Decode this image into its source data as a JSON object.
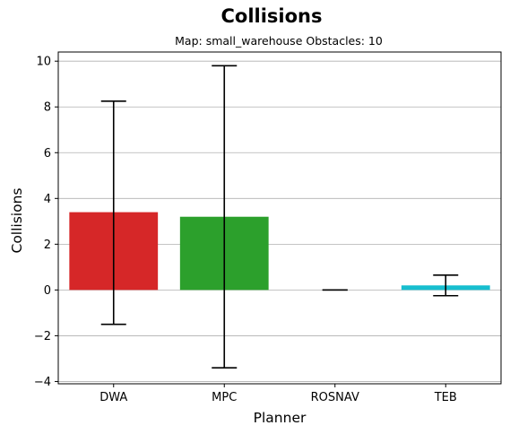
{
  "chart_data": {
    "type": "bar",
    "title": "Collisions",
    "subtitle": "Map: small_warehouse Obstacles: 10",
    "xlabel": "Planner",
    "ylabel": "Collisions",
    "categories": [
      "DWA",
      "MPC",
      "ROSNAV",
      "TEB"
    ],
    "values": [
      3.4,
      3.2,
      0.0,
      0.2
    ],
    "error_low": [
      -1.5,
      -3.4,
      0.0,
      -0.25
    ],
    "error_high": [
      8.25,
      9.8,
      0.0,
      0.65
    ],
    "colors": [
      "#d62728",
      "#2ca02c",
      "#9467bd",
      "#17becf"
    ],
    "ylim": [
      -4.1,
      10.4
    ],
    "yticks": [
      -4,
      -2,
      0,
      2,
      4,
      6,
      8,
      10
    ],
    "ytick_labels": [
      "−4",
      "−2",
      "0",
      "2",
      "4",
      "6",
      "8",
      "10"
    ],
    "grid": "y"
  }
}
